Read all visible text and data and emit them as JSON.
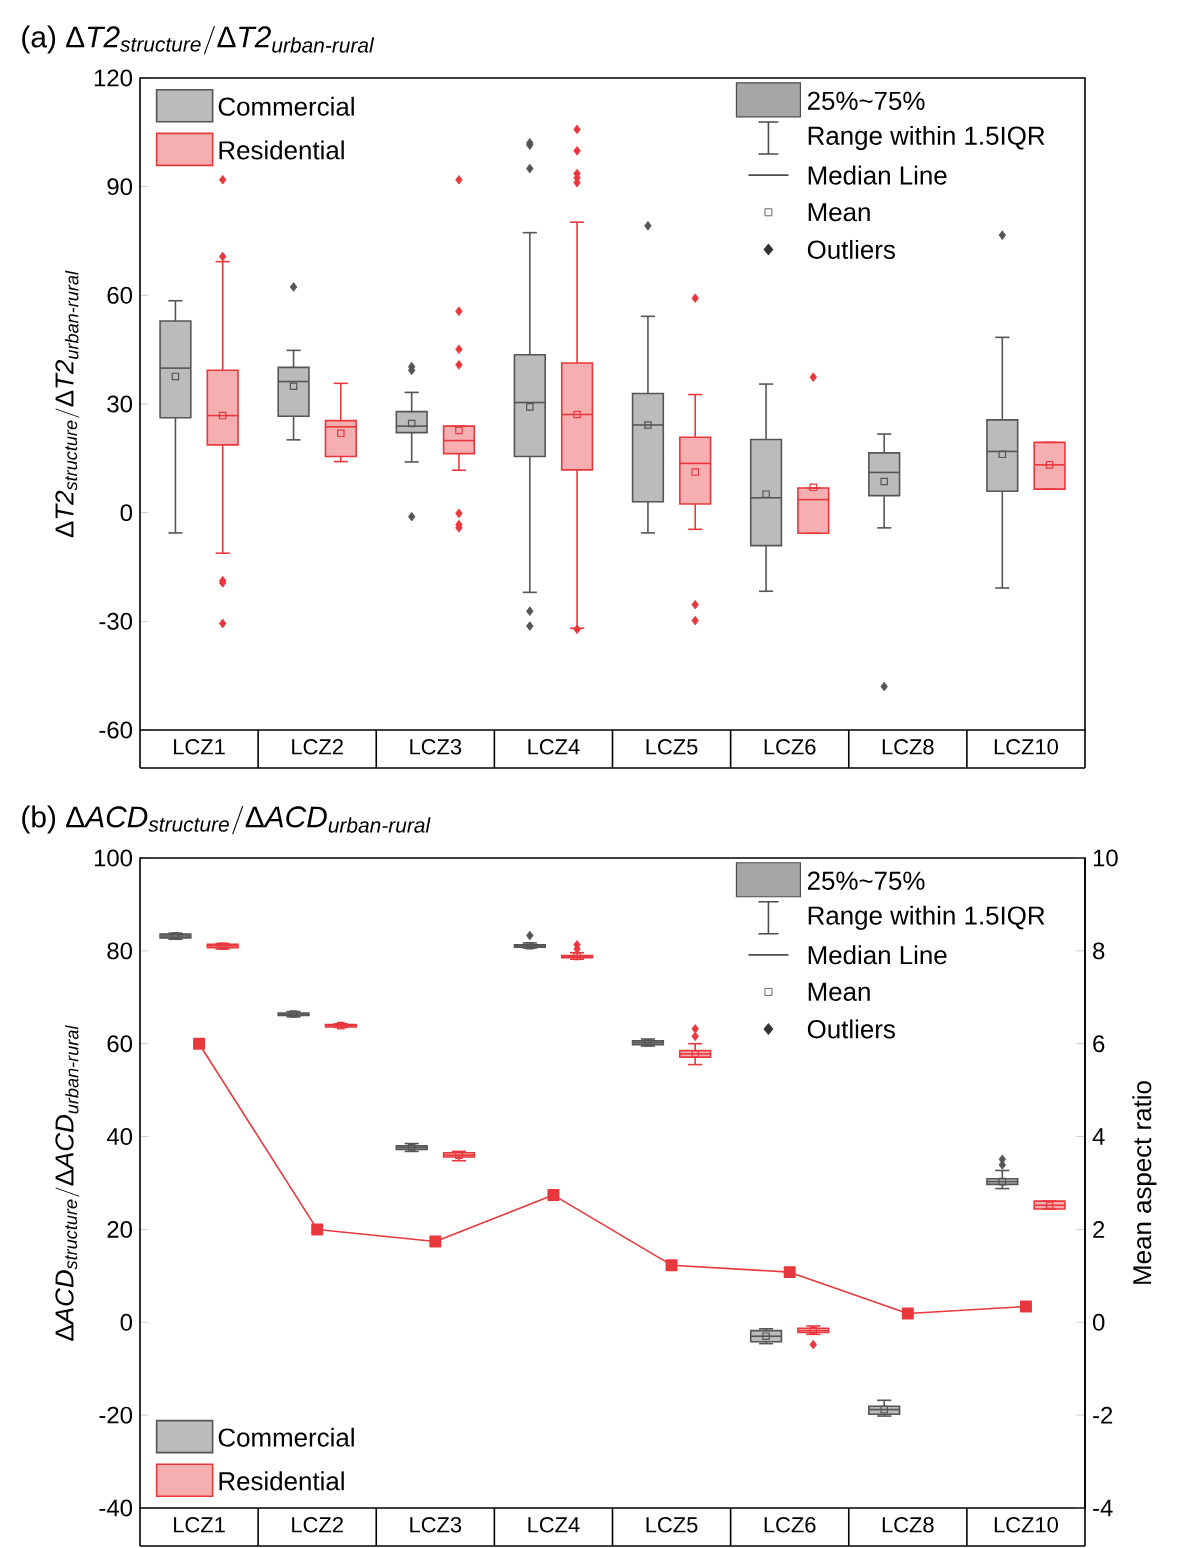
{
  "chart_data": [
    {
      "type": "box",
      "title": "\\text{(a) Δ}\\textit{T2}_{\\textit{structure}}/\\text{Δ}\\textit{T2}_{\\textit{urban-rural}}",
      "ylabel": "\\text{Δ}\\textit{T2}_{\\textit{structure}}/\\text{Δ}\\textit{T2}_{\\textit{urban-rural}}",
      "categories": [
        "LCZ1",
        "LCZ2",
        "LCZ3",
        "LCZ4",
        "LCZ5",
        "LCZ6",
        "LCZ8",
        "LCZ10"
      ],
      "ylim": [
        -60,
        120
      ],
      "yticks": [
        -60,
        -30,
        0,
        30,
        60,
        90,
        120
      ],
      "legend": "top left",
      "annotations": [
        "25%~75%",
        "Range within 1.5IQR",
        "Median Line",
        "Mean",
        "Outliers"
      ],
      "series": [
        {
          "name": "Commercial",
          "color": "#555555",
          "boxes": [
            {
              "low": -5.6,
              "q1": 26.2,
              "median": 39.9,
              "q3": 52.9,
              "high": 58.5,
              "mean": 37.6
            },
            {
              "low": 20.1,
              "q1": 26.6,
              "median": 36.2,
              "q3": 40.1,
              "high": 44.8,
              "mean": 34.9,
              "outliers": [
                62.3
              ]
            },
            {
              "low": 14.0,
              "q1": 22.1,
              "median": 23.9,
              "q3": 27.9,
              "high": 33.2,
              "mean": 24.6,
              "outliers": [
                40.3,
                39.3,
                -1.1
              ]
            },
            {
              "low": -22.0,
              "q1": 15.5,
              "median": 30.4,
              "q3": 43.6,
              "high": 77.3,
              "mean": 29.2,
              "outliers": [
                102.1,
                101.5,
                95.0,
                -27.2,
                -31.3
              ]
            },
            {
              "low": -5.6,
              "q1": 3.0,
              "median": 24.2,
              "q3": 32.9,
              "high": 54.2,
              "mean": 24.2,
              "outliers": [
                79.2
              ]
            },
            {
              "low": -21.7,
              "q1": -9.1,
              "median": 4.1,
              "q3": 20.2,
              "high": 35.5,
              "mean": 5.1
            },
            {
              "low": -4.2,
              "q1": 4.7,
              "median": 11.1,
              "q3": 16.5,
              "high": 21.7,
              "mean": 8.6,
              "outliers": [
                -48.0
              ]
            },
            {
              "low": -20.8,
              "q1": 5.9,
              "median": 16.9,
              "q3": 25.6,
              "high": 48.4,
              "mean": 16.1,
              "outliers": [
                76.6
              ]
            }
          ]
        },
        {
          "name": "Residential",
          "color": "#e8383d",
          "boxes": [
            {
              "low": -11.2,
              "q1": 18.7,
              "median": 26.8,
              "q3": 39.3,
              "high": 69.3,
              "mean": 26.8,
              "outliers": [
                91.9,
                70.7,
                -18.8,
                -19.4,
                -30.6
              ]
            },
            {
              "low": 14.1,
              "q1": 15.5,
              "median": 23.7,
              "q3": 25.4,
              "high": 35.7,
              "mean": 21.9
            },
            {
              "low": 11.7,
              "q1": 16.3,
              "median": 19.9,
              "q3": 23.9,
              "high": 23.9,
              "mean": 22.7,
              "outliers": [
                91.9,
                55.6,
                45.1,
                40.8,
                -0.2,
                -3.3,
                -4.2
              ]
            },
            {
              "low": -31.9,
              "q1": 11.8,
              "median": 27.1,
              "q3": 41.3,
              "high": 80.2,
              "mean": 27.1,
              "outliers": [
                105.8,
                99.9,
                93.6,
                92.4,
                91.1,
                -32.2
              ]
            },
            {
              "low": -4.6,
              "q1": 2.4,
              "median": 13.6,
              "q3": 20.8,
              "high": 32.6,
              "mean": 11.2,
              "outliers": [
                59.2,
                -25.4,
                -29.8
              ]
            },
            {
              "low": -5.7,
              "q1": -5.7,
              "median": 3.6,
              "q3": 6.8,
              "high": 6.8,
              "mean": 7.0,
              "outliers": [
                37.4
              ]
            },
            null,
            {
              "low": 6.5,
              "q1": 6.5,
              "median": 13.2,
              "q3": 19.4,
              "high": 19.4,
              "mean": 13.2
            }
          ]
        }
      ]
    },
    {
      "type": "box",
      "title": "\\text{(b) Δ}\\textit{ACD}_{\\textit{structure}}/\\text{Δ}\\textit{ACD}_{\\textit{urban-rural}}",
      "ylabel": "\\text{Δ}\\textit{ACD}_{\\textit{structure}}/\\text{Δ}\\textit{ACD}_{\\textit{urban-rural}}",
      "y2label": "Mean aspect ratio",
      "categories": [
        "LCZ1",
        "LCZ2",
        "LCZ3",
        "LCZ4",
        "LCZ5",
        "LCZ6",
        "LCZ8",
        "LCZ10"
      ],
      "ylim": [
        -40,
        100
      ],
      "yticks": [
        -40,
        -20,
        0,
        20,
        40,
        60,
        80,
        100
      ],
      "y2lim": [
        -4,
        10
      ],
      "y2ticks": [
        -4,
        -2,
        0,
        2,
        4,
        6,
        8,
        10
      ],
      "legend": "bottom left",
      "annotations": [
        "25%~75%",
        "Range within 1.5IQR",
        "Median Line",
        "Mean",
        "Outliers"
      ],
      "series": [
        {
          "name": "Commercial",
          "color": "#555555",
          "boxes": [
            {
              "low": 82.5,
              "q1": 82.8,
              "median": 83.2,
              "q3": 83.6,
              "high": 83.8,
              "mean": 83.2
            },
            {
              "low": 65.8,
              "q1": 66.1,
              "median": 66.4,
              "q3": 66.6,
              "high": 66.9,
              "mean": 66.4
            },
            {
              "low": 36.8,
              "q1": 37.2,
              "median": 37.6,
              "q3": 38.0,
              "high": 38.5,
              "mean": 37.6
            },
            {
              "low": 80.6,
              "q1": 80.8,
              "median": 81.1,
              "q3": 81.3,
              "high": 81.7,
              "mean": 81.1,
              "outliers": [
                83.3
              ]
            },
            {
              "low": 59.5,
              "q1": 59.8,
              "median": 60.2,
              "q3": 60.6,
              "high": 61.0,
              "mean": 60.2
            },
            {
              "low": -4.6,
              "q1": -4.2,
              "median": -3.0,
              "q3": -1.8,
              "high": -1.4,
              "mean": -3.0
            },
            {
              "low": -20.2,
              "q1": -19.8,
              "median": -18.8,
              "q3": -18.1,
              "high": -16.8,
              "mean": -18.8
            },
            {
              "low": 28.8,
              "q1": 29.7,
              "median": 30.3,
              "q3": 30.9,
              "high": 32.7,
              "mean": 30.3,
              "outliers": [
                33.9,
                35.1
              ]
            }
          ]
        },
        {
          "name": "Residential",
          "color": "#e8383d",
          "boxes": [
            {
              "low": 80.4,
              "q1": 80.7,
              "median": 81.1,
              "q3": 81.4,
              "high": 81.6,
              "mean": 81.0
            },
            {
              "low": 63.5,
              "q1": 63.6,
              "median": 63.9,
              "q3": 64.1,
              "high": 64.3,
              "mean": 63.9
            },
            {
              "low": 34.8,
              "q1": 35.6,
              "median": 36.0,
              "q3": 36.5,
              "high": 36.8,
              "mean": 36.0
            },
            {
              "low": 78.2,
              "q1": 78.5,
              "median": 78.8,
              "q3": 79.0,
              "high": 79.6,
              "mean": 78.8,
              "outliers": [
                81.3,
                80.4
              ]
            },
            {
              "low": 55.5,
              "q1": 57.1,
              "median": 57.8,
              "q3": 58.5,
              "high": 60.0,
              "mean": 57.8,
              "outliers": [
                61.6,
                63.2
              ]
            },
            {
              "low": -2.6,
              "q1": -2.2,
              "median": -1.8,
              "q3": -1.3,
              "high": -0.8,
              "mean": -1.8,
              "outliers": [
                -4.8
              ]
            },
            null,
            {
              "low": 24.4,
              "q1": 24.4,
              "median": 25.2,
              "q3": 26.1,
              "high": 26.1,
              "mean": 25.2
            }
          ]
        },
        {
          "type": "line",
          "axis": "y2",
          "color": "#e8383d",
          "marker": "square",
          "values": [
            6.0,
            2.0,
            1.74,
            2.74,
            1.23,
            1.08,
            0.19,
            0.34
          ]
        }
      ]
    }
  ]
}
